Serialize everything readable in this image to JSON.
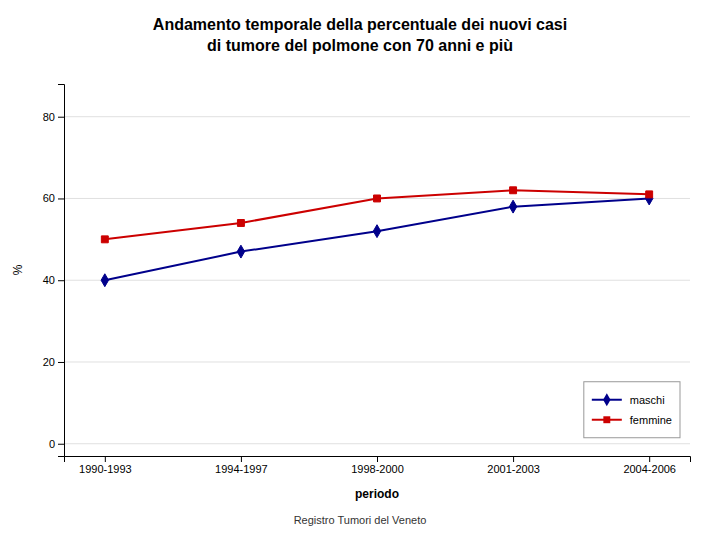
{
  "chart_data": {
    "type": "line",
    "title": [
      "Andamento temporale della percentuale dei nuovi casi",
      "di tumore del polmone con 70 anni e più"
    ],
    "subtitle": "Registro Tumori del Veneto",
    "x_label": "periodo",
    "y_label": "%",
    "categories": [
      "1990-1993",
      "1994-1997",
      "1998-2000",
      "2001-2003",
      "2004-2006"
    ],
    "series": [
      {
        "name": "maschi",
        "color": "#00008B",
        "marker": "diamond",
        "line_style": "solid",
        "values": [
          40,
          47,
          52,
          58,
          60
        ]
      },
      {
        "name": "femmine",
        "color": "#CC0000",
        "marker": "square",
        "line_style": "solid",
        "values": [
          50,
          54,
          60,
          62,
          61
        ]
      }
    ],
    "ylim": [
      -3,
      88
    ],
    "yticks": [
      0,
      20,
      40,
      60,
      80
    ],
    "grid": true,
    "legend": "lower right"
  }
}
